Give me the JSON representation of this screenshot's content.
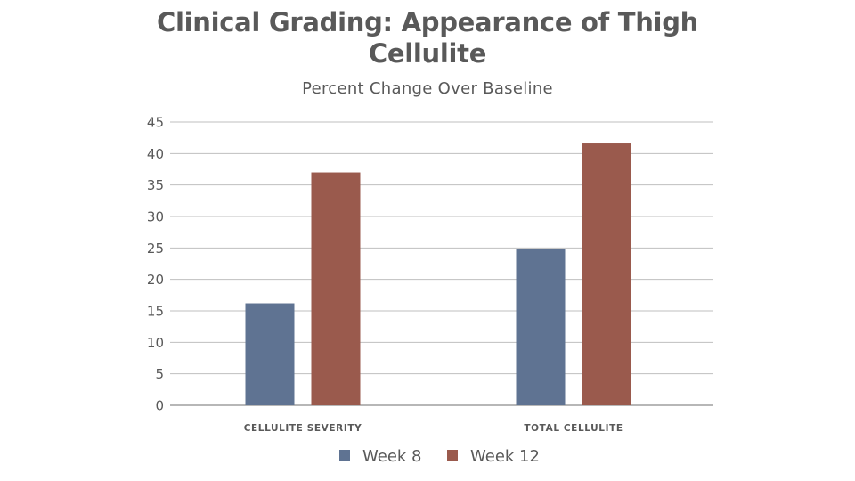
{
  "chart_data": {
    "type": "bar",
    "title": "Clinical Grading: Appearance of Thigh Cellulite",
    "subtitle": "Percent Change Over Baseline",
    "xlabel": "",
    "ylabel": "",
    "categories": [
      "CELLULITE SEVERITY",
      "TOTAL CELLULITE"
    ],
    "series": [
      {
        "name": "Week 8",
        "color": "#5f7392",
        "values": [
          16.2,
          24.8
        ]
      },
      {
        "name": "Week 12",
        "color": "#9a5a4d",
        "values": [
          37.0,
          41.6
        ]
      }
    ],
    "ylim": [
      0,
      45
    ],
    "yticks": [
      "0",
      "5",
      "10",
      "15",
      "20",
      "25",
      "30",
      "35",
      "40",
      "45"
    ],
    "grid": true,
    "legend": "bottom"
  }
}
